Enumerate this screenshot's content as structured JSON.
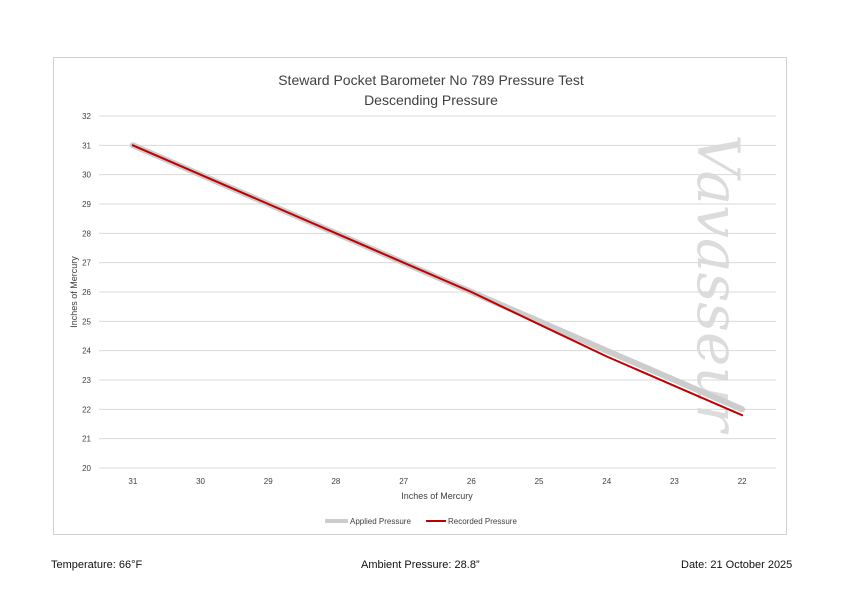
{
  "chart_data": {
    "type": "line",
    "title": [
      "Steward Pocket Barometer No 789 Pressure Test",
      "Descending Pressure"
    ],
    "xlabel": "Inches of Mercury",
    "ylabel": "Inches of Mercury",
    "categories": [
      "31",
      "30",
      "29",
      "28",
      "27",
      "26",
      "25",
      "24",
      "23",
      "22"
    ],
    "ylim": [
      20,
      32
    ],
    "yticks": [
      "20",
      "21",
      "22",
      "23",
      "24",
      "25",
      "26",
      "27",
      "28",
      "29",
      "30",
      "31",
      "32"
    ],
    "series": [
      {
        "name": "Applied Pressure",
        "values": [
          31,
          30,
          29,
          28,
          27,
          26,
          25,
          24,
          23,
          22
        ],
        "color": "#cccccc"
      },
      {
        "name": "Recorded Pressure",
        "values": [
          31,
          30,
          29,
          28,
          27,
          26,
          24.9,
          23.8,
          22.8,
          21.8
        ],
        "color": "#c00000"
      }
    ],
    "grid": true,
    "legend_position": "bottom",
    "watermark": "Vavasseur"
  },
  "footer": {
    "temperature": "Temperature: 66°F",
    "ambient": "Ambient Pressure: 28.8”",
    "date": "Date: 21 October 2025"
  }
}
